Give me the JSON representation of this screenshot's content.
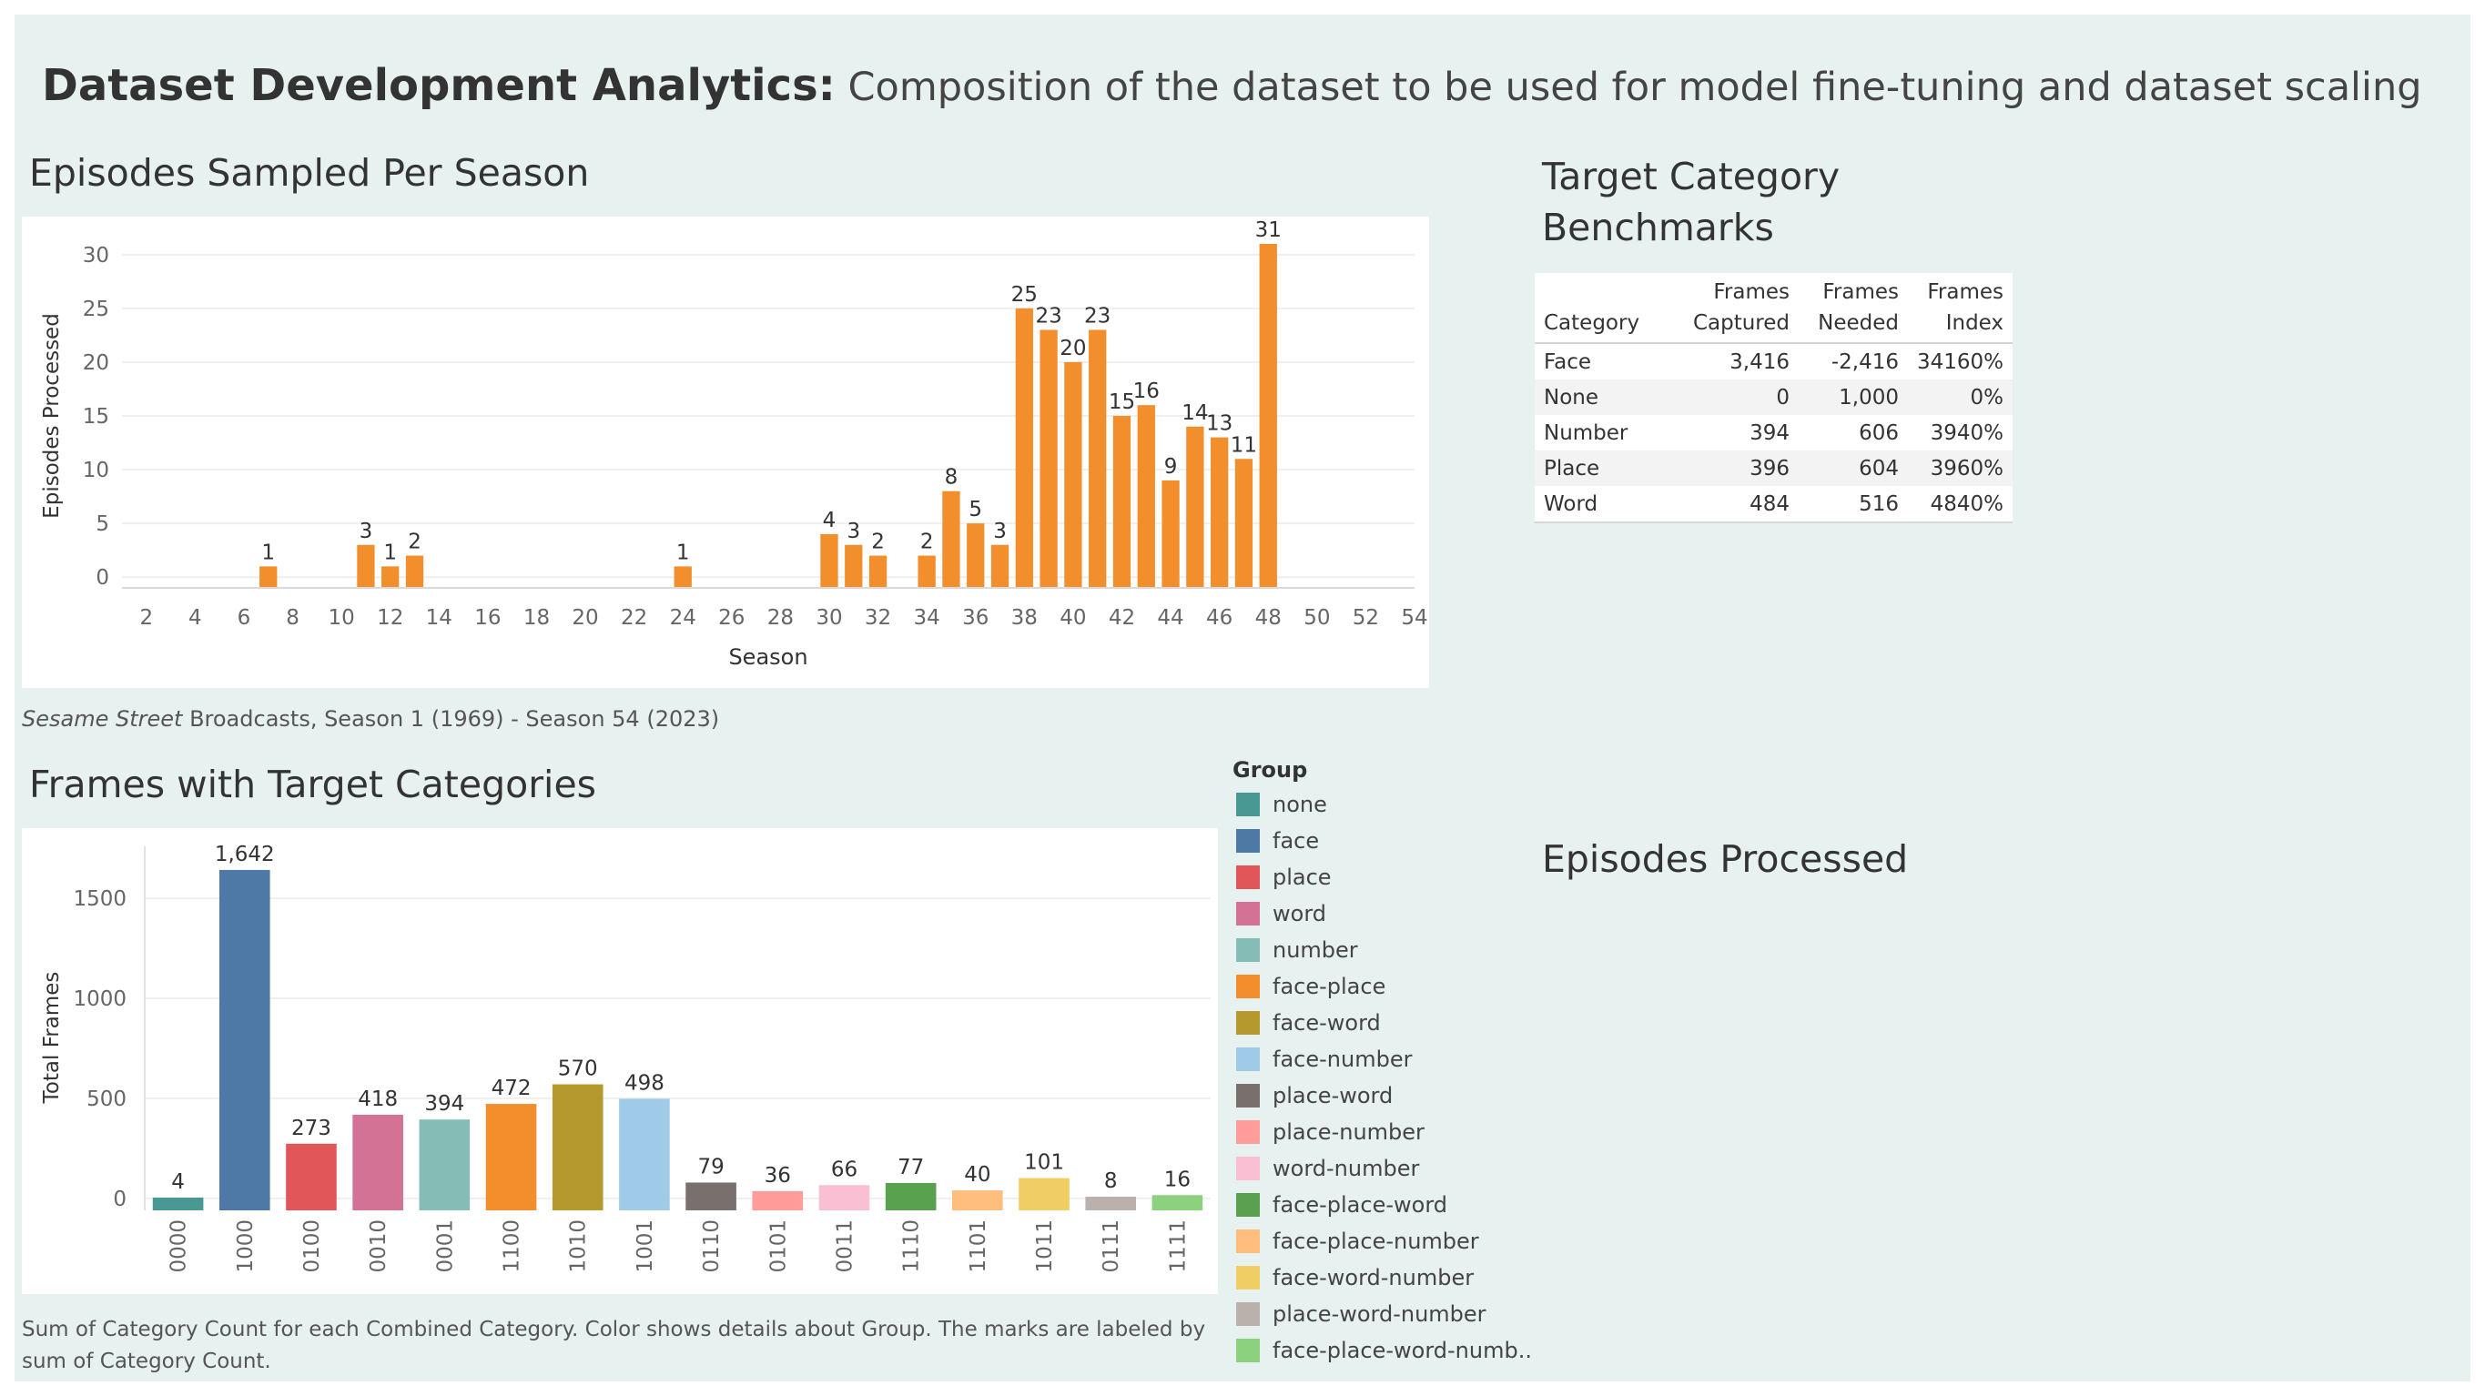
{
  "dashboard": {
    "title_bold": "Dataset Development Analytics:",
    "title_rest": " Composition of the dataset to be used for model fine-tuning and dataset scaling",
    "episodes_section_title": "Episodes Sampled Per Season",
    "episodes_caption_italic": "Sesame Street",
    "episodes_caption_rest": "  Broadcasts, Season 1 (1969) - Season 54 (2023)",
    "frames_section_title": "Frames with Target Categories",
    "frames_caption_line1": "Sum of Category Count for each Combined Category.  Color shows details about Group.  The marks are labeled by",
    "frames_caption_line2": "sum of Category Count.",
    "benchmarks_title_line1": "Target Category",
    "benchmarks_title_line2": "Benchmarks",
    "episodes_processed_title": "Episodes Processed"
  },
  "benchmarks": {
    "headers": {
      "category": "Category",
      "captured_line1": "Frames",
      "captured_line2": "Captured",
      "needed_line1": "Frames",
      "needed_line2": "Needed",
      "index_line1": "Frames",
      "index_line2": "Index"
    },
    "rows": [
      {
        "category": "Face",
        "captured": "3,416",
        "needed": "-2,416",
        "index": "34160%"
      },
      {
        "category": "None",
        "captured": "0",
        "needed": "1,000",
        "index": "0%"
      },
      {
        "category": "Number",
        "captured": "394",
        "needed": "606",
        "index": "3940%"
      },
      {
        "category": "Place",
        "captured": "396",
        "needed": "604",
        "index": "3960%"
      },
      {
        "category": "Word",
        "captured": "484",
        "needed": "516",
        "index": "4840%"
      }
    ]
  },
  "legend": {
    "title": "Group",
    "items": [
      {
        "label": "none",
        "color": "#499894"
      },
      {
        "label": "face",
        "color": "#4e79a7"
      },
      {
        "label": "place",
        "color": "#e15759"
      },
      {
        "label": "word",
        "color": "#d37295"
      },
      {
        "label": "number",
        "color": "#86bcb6"
      },
      {
        "label": "face-place",
        "color": "#f28e2b"
      },
      {
        "label": "face-word",
        "color": "#b6992d"
      },
      {
        "label": "face-number",
        "color": "#a0cbe8"
      },
      {
        "label": "place-word",
        "color": "#79706e"
      },
      {
        "label": "place-number",
        "color": "#ff9d9a"
      },
      {
        "label": "word-number",
        "color": "#fabfd2"
      },
      {
        "label": "face-place-word",
        "color": "#59a14f"
      },
      {
        "label": "face-place-number",
        "color": "#ffbe7d"
      },
      {
        "label": "face-word-number",
        "color": "#f1ce63"
      },
      {
        "label": "place-word-number",
        "color": "#bab0ac"
      },
      {
        "label": "face-place-word-numb..",
        "color": "#8cd17d"
      }
    ]
  },
  "chart_data": [
    {
      "type": "bar",
      "xlabel": "Season",
      "ylabel": "Episodes Processed",
      "color": "#f28e2b",
      "ylim": [
        -1,
        31
      ],
      "yticks": [
        0,
        5,
        10,
        15,
        20,
        25,
        30
      ],
      "xlim": [
        1,
        54
      ],
      "xticks": [
        2,
        4,
        6,
        8,
        10,
        12,
        14,
        16,
        18,
        20,
        22,
        24,
        26,
        28,
        30,
        32,
        34,
        36,
        38,
        40,
        42,
        44,
        46,
        48,
        50,
        52,
        54
      ],
      "grid": true,
      "x": [
        7,
        11,
        12,
        13,
        24,
        30,
        31,
        32,
        34,
        35,
        36,
        37,
        38,
        39,
        40,
        41,
        42,
        43,
        44,
        45,
        46,
        47,
        48
      ],
      "values": [
        1,
        3,
        1,
        2,
        1,
        4,
        3,
        2,
        2,
        8,
        5,
        3,
        25,
        23,
        20,
        23,
        15,
        16,
        9,
        14,
        13,
        11,
        31
      ],
      "labels": [
        "1",
        "3",
        "1",
        "2",
        "1",
        "4",
        "3",
        "2",
        "2",
        "8",
        "5",
        "3",
        "25",
        "23",
        "20",
        "23",
        "15",
        "16",
        "9",
        "14",
        "13",
        "11",
        "31"
      ]
    },
    {
      "type": "bar",
      "xlabel": "",
      "ylabel": "Total Frames",
      "ylim": [
        -60,
        1760
      ],
      "yticks": [
        0,
        500,
        1000,
        1500
      ],
      "grid": true,
      "categories": [
        "0000",
        "1000",
        "0100",
        "0010",
        "0001",
        "1100",
        "1010",
        "1001",
        "0110",
        "0101",
        "0011",
        "1110",
        "1101",
        "1011",
        "0111",
        "1111"
      ],
      "values": [
        4,
        1642,
        273,
        418,
        394,
        472,
        570,
        498,
        79,
        36,
        66,
        77,
        40,
        101,
        8,
        16
      ],
      "labels": [
        "4",
        "1,642",
        "273",
        "418",
        "394",
        "472",
        "570",
        "498",
        "79",
        "36",
        "66",
        "77",
        "40",
        "101",
        "8",
        "16"
      ],
      "colors": [
        "#499894",
        "#4e79a7",
        "#e15759",
        "#d37295",
        "#86bcb6",
        "#f28e2b",
        "#b6992d",
        "#a0cbe8",
        "#79706e",
        "#ff9d9a",
        "#fabfd2",
        "#59a14f",
        "#ffbe7d",
        "#f1ce63",
        "#bab0ac",
        "#8cd17d"
      ]
    }
  ]
}
